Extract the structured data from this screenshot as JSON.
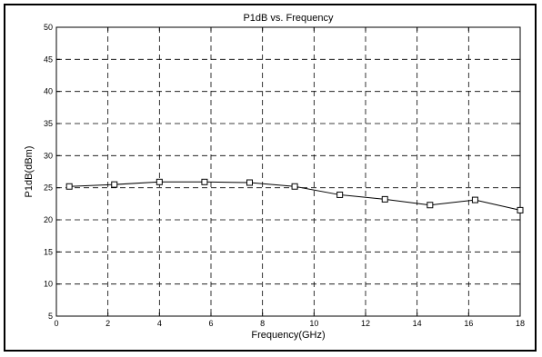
{
  "chart_data": {
    "type": "line",
    "title": "P1dB vs. Frequency",
    "xlabel": "Frequency(GHz)",
    "ylabel": "P1dB(dBm)",
    "xlim": [
      0,
      18
    ],
    "ylim": [
      5,
      50
    ],
    "xticks": [
      0,
      2,
      4,
      6,
      8,
      10,
      12,
      14,
      16,
      18
    ],
    "yticks": [
      5,
      10,
      15,
      20,
      25,
      30,
      35,
      40,
      45,
      50
    ],
    "grid": true,
    "grid_style": "dashed",
    "marker": "square",
    "line_color": "#000000",
    "series": [
      {
        "x": [
          0.5,
          2.25,
          4.0,
          5.75,
          7.5,
          9.25,
          11.0,
          12.75,
          14.5,
          16.25,
          18.0
        ],
        "y": [
          25.2,
          25.5,
          25.9,
          25.9,
          25.8,
          25.2,
          23.9,
          23.2,
          22.3,
          23.1,
          21.5
        ]
      }
    ]
  }
}
